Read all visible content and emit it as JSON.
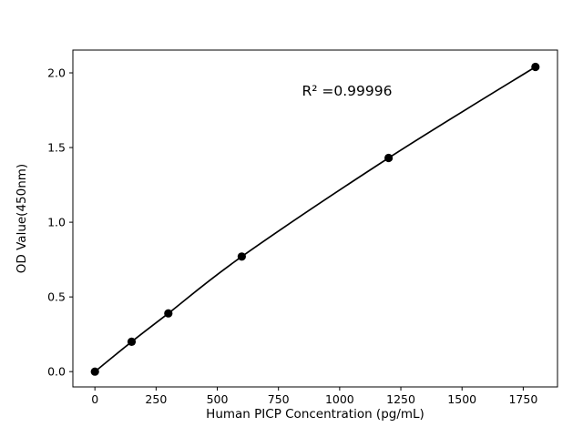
{
  "chart_data": {
    "type": "scatter",
    "title": "",
    "xlabel": "Human PICP Concentration (pg/mL)",
    "ylabel": "OD Value(450nm)",
    "annotation": "R² =0.99996",
    "x": [
      0,
      150,
      300,
      600,
      1200,
      1800
    ],
    "y": [
      0.0,
      0.2,
      0.39,
      0.77,
      1.43,
      2.04
    ],
    "xlim": [
      -90,
      1890
    ],
    "ylim": [
      -0.1025,
      2.1525
    ],
    "xticks": [
      0,
      250,
      500,
      750,
      1000,
      1250,
      1500,
      1750
    ],
    "xtick_labels": [
      "0",
      "250",
      "500",
      "750",
      "1000",
      "1250",
      "1500",
      "1750"
    ],
    "yticks": [
      0.0,
      0.5,
      1.0,
      1.5,
      2.0
    ],
    "ytick_labels": [
      "0.0",
      "0.5",
      "1.0",
      "1.5",
      "2.0"
    ],
    "line_color": "#000000",
    "marker_color": "#000000",
    "frame_color": "#000000",
    "background": "#ffffff",
    "legend": "none",
    "grid": "off"
  }
}
